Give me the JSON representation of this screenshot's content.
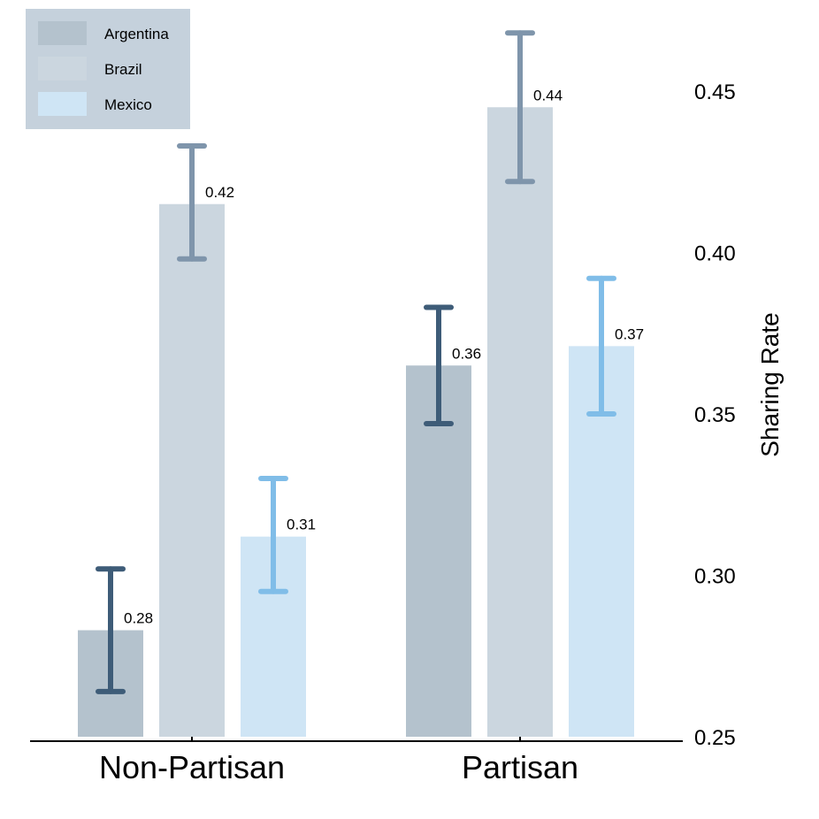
{
  "chart_data": {
    "type": "bar",
    "categories": [
      "Non-Partisan",
      "Partisan"
    ],
    "series": [
      {
        "name": "Argentina",
        "values": [
          0.283,
          0.365
        ],
        "err_low": [
          0.264,
          0.347
        ],
        "err_high": [
          0.302,
          0.383
        ],
        "labels": [
          "0.28",
          "0.36"
        ],
        "fill": "#b4c2cd",
        "err_color": "#3e5c78"
      },
      {
        "name": "Brazil",
        "values": [
          0.415,
          0.445
        ],
        "err_low": [
          0.398,
          0.422
        ],
        "err_high": [
          0.433,
          0.468
        ],
        "labels": [
          "0.42",
          "0.44"
        ],
        "fill": "#cbd6df",
        "err_color": "#7f95ab"
      },
      {
        "name": "Mexico",
        "values": [
          0.312,
          0.371
        ],
        "err_low": [
          0.295,
          0.35
        ],
        "err_high": [
          0.33,
          0.392
        ],
        "labels": [
          "0.31",
          "0.37"
        ],
        "fill": "#cfe5f5",
        "err_color": "#80bde8"
      }
    ],
    "ylabel": "Sharing Rate",
    "ylim": [
      0.25,
      0.47
    ],
    "yticks": [
      "0.25",
      "0.30",
      "0.35",
      "0.40",
      "0.45"
    ],
    "legend": {
      "placement": "top-left",
      "background": "#c5d1dc"
    },
    "grid": false
  }
}
